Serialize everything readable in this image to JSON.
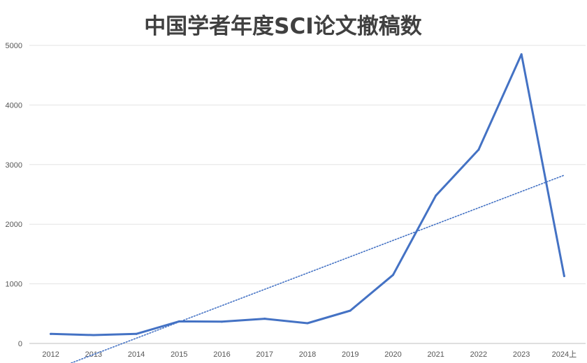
{
  "chart_data": {
    "type": "line",
    "title": "中国学者年度SCI论文撤稿数",
    "xlabel": "",
    "ylabel": "",
    "categories": [
      "2012",
      "2013",
      "2014",
      "2015",
      "2016",
      "2017",
      "2018",
      "2019",
      "2020",
      "2021",
      "2022",
      "2023",
      "2024上"
    ],
    "series": [
      {
        "values": [
          160,
          140,
          160,
          370,
          365,
          415,
          340,
          550,
          1150,
          2480,
          3250,
          4850,
          1130
        ],
        "color": "#4472C4",
        "style": "solid"
      }
    ],
    "trendline": {
      "type": "linear",
      "color": "#4472C4",
      "style": "dotted"
    },
    "ylim": [
      0,
      5000
    ],
    "yticks": [
      0,
      1000,
      2000,
      3000,
      4000,
      5000
    ],
    "grid": "horizontal",
    "legend": "none"
  }
}
